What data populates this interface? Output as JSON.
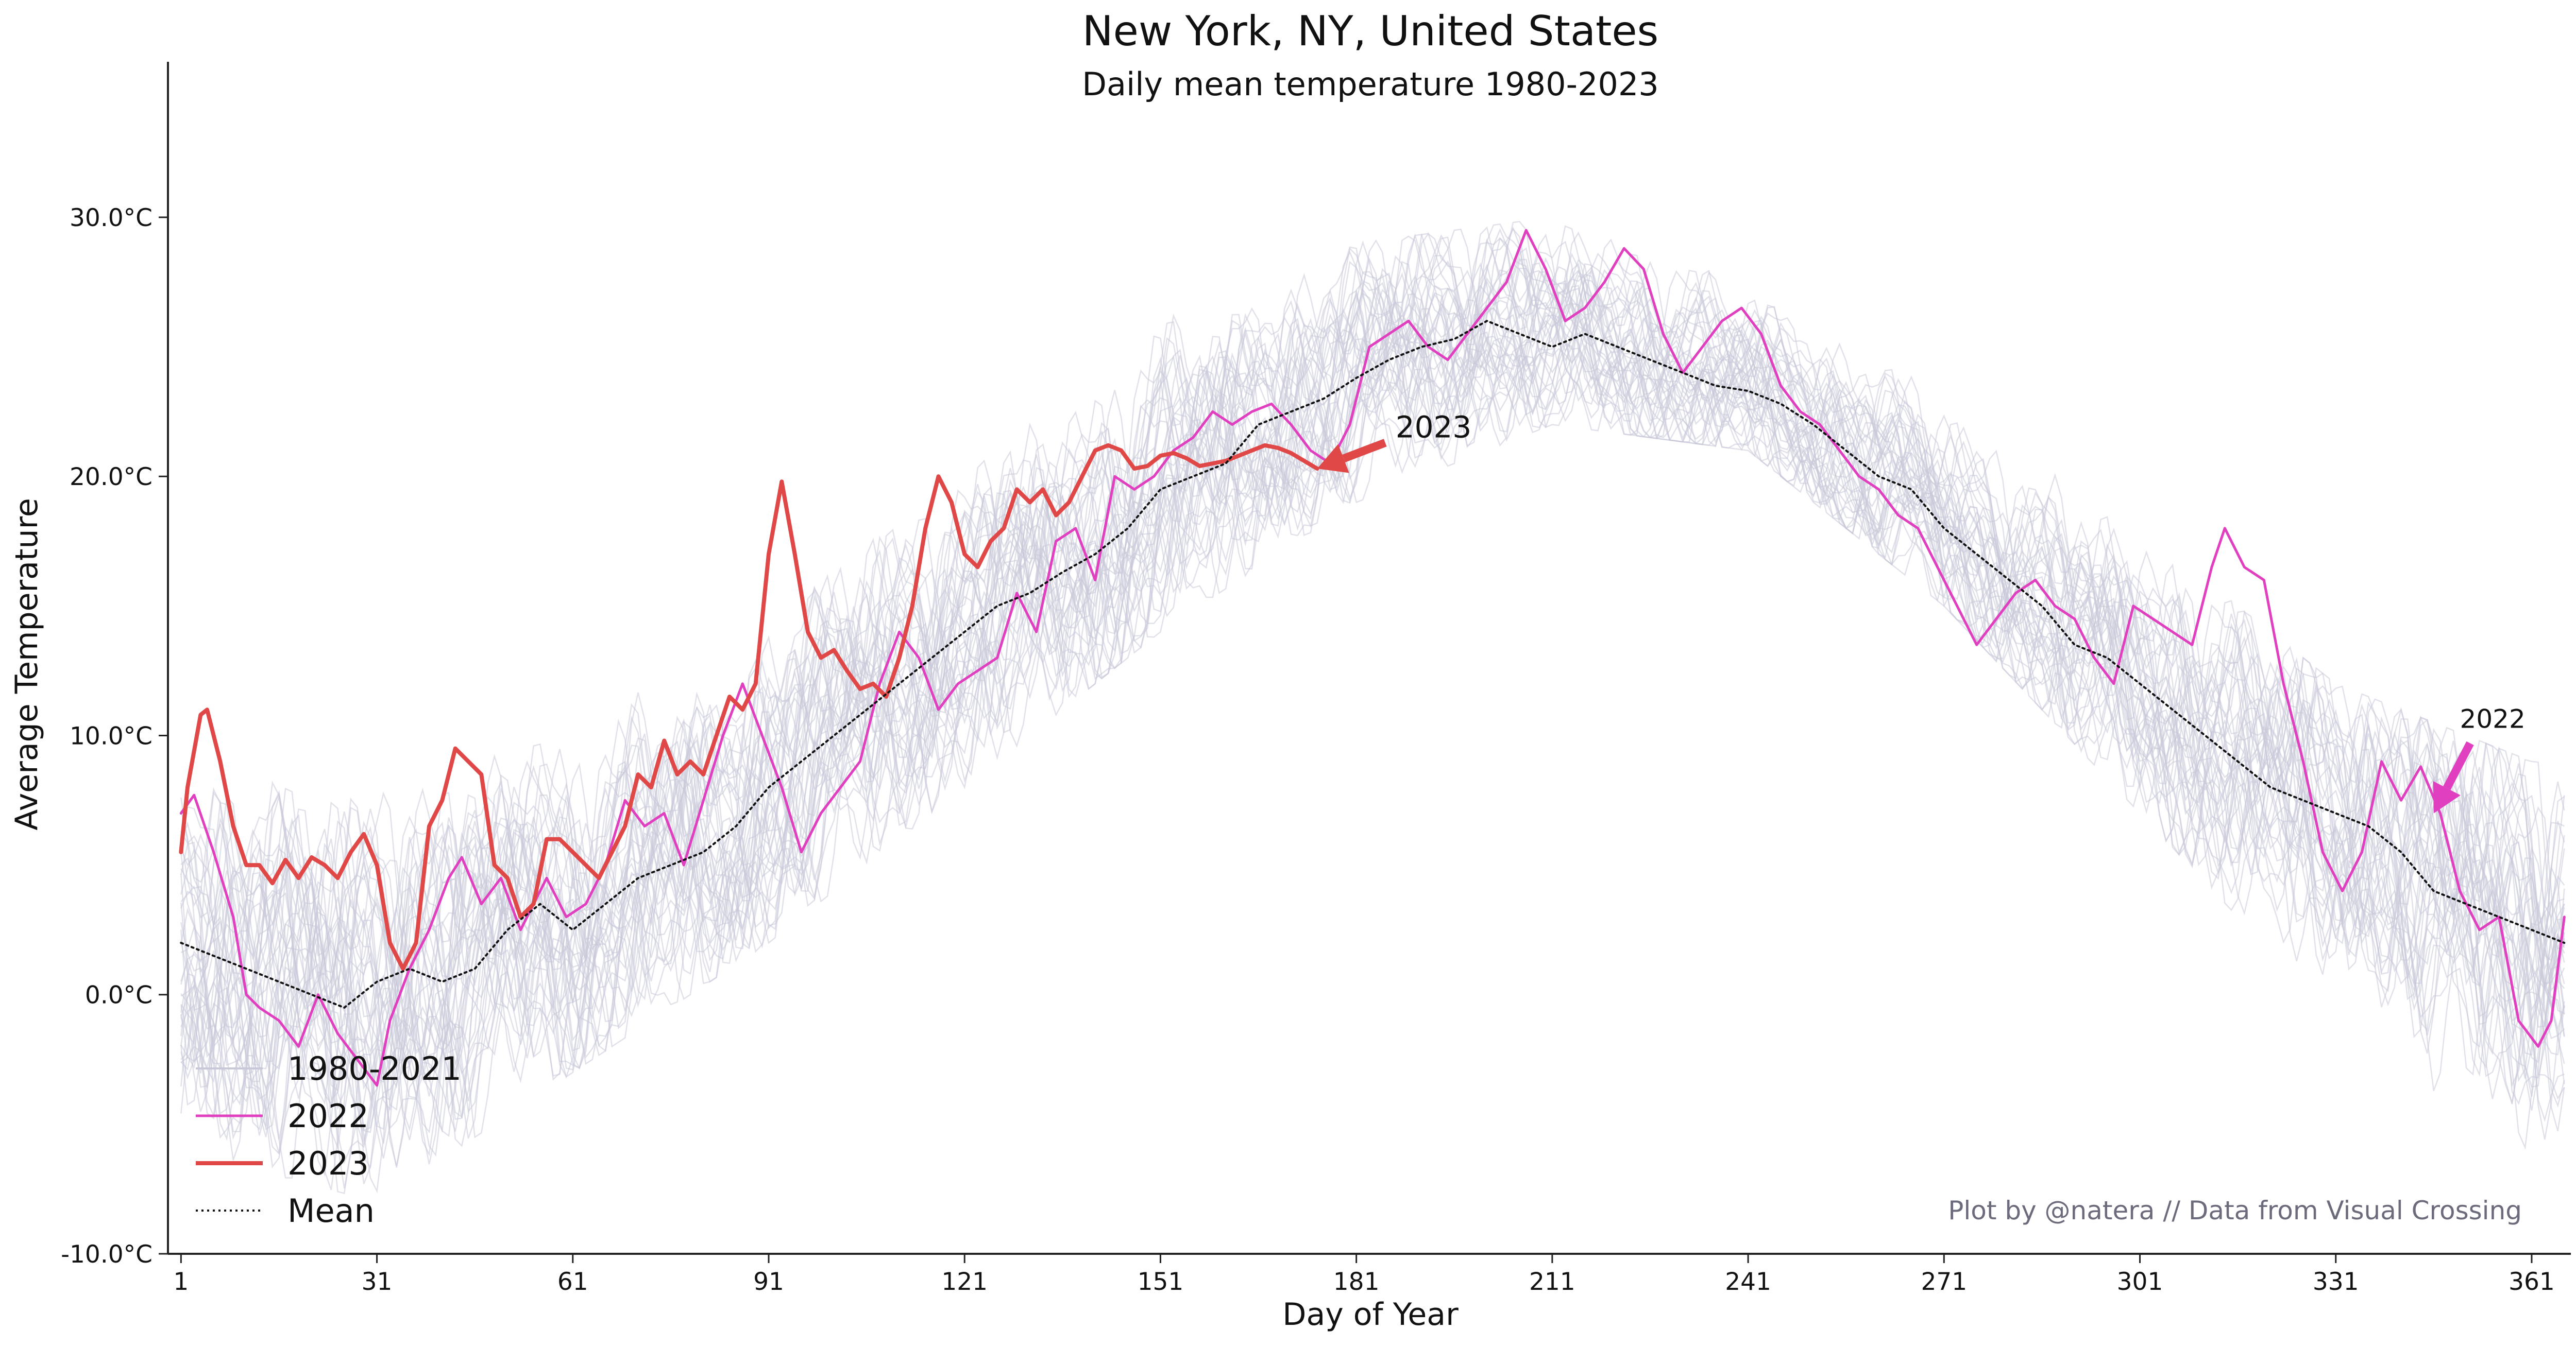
{
  "chart_data": {
    "type": "line",
    "title": "New York, NY, United States",
    "subtitle": "Daily mean temperature 1980-2023",
    "xlabel": "Day of Year",
    "ylabel": "Average Temperature",
    "xlim": [
      -1,
      367
    ],
    "ylim": [
      -10,
      36
    ],
    "xticks": [
      1,
      31,
      61,
      91,
      121,
      151,
      181,
      211,
      241,
      271,
      301,
      331,
      361
    ],
    "yticks": [
      -10,
      0,
      10,
      20,
      30
    ],
    "ytick_labels": [
      "-10.0°C",
      "0.0°C",
      "10.0°C",
      "20.0°C",
      "30.0°C"
    ],
    "grid": false,
    "legend_position": "bottom-left",
    "credit": "Plot by @natera // Data from Visual Crossing",
    "colors": {
      "history": "#c8c8d8",
      "y2022": "#e040c0",
      "y2023": "#e04848",
      "mean": "#111111"
    },
    "series": [
      {
        "name": "1980-2021",
        "style": "history",
        "note": "42 faint individual yearly traces scattered around the mean",
        "band_x": [
          1,
          31,
          61,
          91,
          121,
          151,
          181,
          211,
          241,
          271,
          301,
          331,
          361,
          366
        ],
        "band_lower": [
          -6,
          -8,
          -3,
          2,
          8,
          14,
          19,
          22,
          21,
          15,
          7,
          -1,
          -7,
          -6
        ],
        "band_upper": [
          9,
          8,
          10,
          15,
          20,
          26,
          29,
          30,
          28,
          23,
          18,
          12,
          9,
          9
        ]
      },
      {
        "name": "2022",
        "style": "y2022",
        "x": [
          1,
          3,
          6,
          9,
          11,
          13,
          16,
          19,
          22,
          25,
          28,
          31,
          33,
          36,
          39,
          42,
          44,
          47,
          50,
          53,
          57,
          60,
          63,
          66,
          69,
          72,
          75,
          78,
          81,
          84,
          87,
          90,
          93,
          96,
          99,
          102,
          105,
          108,
          111,
          114,
          117,
          120,
          123,
          126,
          129,
          132,
          135,
          138,
          141,
          144,
          147,
          150,
          153,
          156,
          159,
          162,
          165,
          168,
          171,
          174,
          177,
          180,
          183,
          186,
          189,
          192,
          195,
          198,
          201,
          204,
          207,
          210,
          213,
          216,
          219,
          222,
          225,
          228,
          231,
          234,
          237,
          240,
          243,
          246,
          249,
          252,
          255,
          258,
          261,
          264,
          267,
          270,
          273,
          276,
          279,
          282,
          285,
          288,
          291,
          294,
          297,
          300,
          303,
          306,
          309,
          312,
          314,
          317,
          320,
          323,
          326,
          329,
          332,
          335,
          338,
          341,
          344,
          347,
          350,
          353,
          356,
          359,
          362,
          364,
          366
        ],
        "values": [
          7.0,
          7.7,
          5.5,
          3.0,
          0.0,
          -0.5,
          -1.0,
          -2.0,
          0.0,
          -1.5,
          -2.5,
          -3.5,
          -1.0,
          1.0,
          2.5,
          4.5,
          5.3,
          3.5,
          4.5,
          2.5,
          4.5,
          3.0,
          3.5,
          5.0,
          7.5,
          6.5,
          7.0,
          5.0,
          7.5,
          10.0,
          12.0,
          10.0,
          8.0,
          5.5,
          7.0,
          8.0,
          9.0,
          12.0,
          14.0,
          13.0,
          11.0,
          12.0,
          12.5,
          13.0,
          15.5,
          14.0,
          17.5,
          18.0,
          16.0,
          20.0,
          19.5,
          20.0,
          21.0,
          21.5,
          22.5,
          22.0,
          22.5,
          22.8,
          22.0,
          21.0,
          20.5,
          22.0,
          25.0,
          25.5,
          26.0,
          25.0,
          24.5,
          25.5,
          26.5,
          27.5,
          29.5,
          28.0,
          26.0,
          26.5,
          27.5,
          28.8,
          28.0,
          25.5,
          24.0,
          25.0,
          26.0,
          26.5,
          25.5,
          23.5,
          22.5,
          22.0,
          21.0,
          20.0,
          19.5,
          18.5,
          18.0,
          16.5,
          15.0,
          13.5,
          14.5,
          15.5,
          16.0,
          15.0,
          14.5,
          13.0,
          12.0,
          15.0,
          14.5,
          14.0,
          13.5,
          16.5,
          18.0,
          16.5,
          16.0,
          12.0,
          9.0,
          5.5,
          4.0,
          5.5,
          9.0,
          7.5,
          8.8,
          7.0,
          4.0,
          2.5,
          3.0,
          -1.0,
          -2.0,
          -1.0,
          3.0
        ]
      },
      {
        "name": "2023",
        "style": "y2023",
        "x": [
          1,
          2,
          4,
          5,
          7,
          9,
          11,
          13,
          15,
          17,
          19,
          21,
          23,
          25,
          27,
          29,
          31,
          33,
          35,
          37,
          39,
          41,
          43,
          45,
          47,
          49,
          51,
          53,
          55,
          57,
          59,
          61,
          63,
          65,
          67,
          69,
          71,
          73,
          75,
          77,
          79,
          81,
          83,
          85,
          87,
          89,
          91,
          93,
          95,
          97,
          99,
          101,
          103,
          105,
          107,
          109,
          111,
          113,
          115,
          117,
          119,
          121,
          123,
          125,
          127,
          129,
          131,
          133,
          135,
          137,
          139,
          141,
          143,
          145,
          147,
          149,
          151,
          153,
          155,
          157,
          159,
          161,
          163,
          165,
          167,
          169,
          171,
          173,
          175
        ],
        "values": [
          5.5,
          8.0,
          10.8,
          11.0,
          9.0,
          6.5,
          5.0,
          5.0,
          4.3,
          5.2,
          4.5,
          5.3,
          5.0,
          4.5,
          5.5,
          6.2,
          5.0,
          2.0,
          1.0,
          2.0,
          6.5,
          7.5,
          9.5,
          9.0,
          8.5,
          5.0,
          4.5,
          3.0,
          3.5,
          6.0,
          6.0,
          5.5,
          5.0,
          4.5,
          5.5,
          6.5,
          8.5,
          8.0,
          9.8,
          8.5,
          9.0,
          8.5,
          10.0,
          11.5,
          11.0,
          12.0,
          17.0,
          19.8,
          17.0,
          14.0,
          13.0,
          13.3,
          12.5,
          11.8,
          12.0,
          11.5,
          13.0,
          15.0,
          18.0,
          20.0,
          19.0,
          17.0,
          16.5,
          17.5,
          18.0,
          19.5,
          19.0,
          19.5,
          18.5,
          19.0,
          20.0,
          21.0,
          21.2,
          21.0,
          20.3,
          20.4,
          20.8,
          20.9,
          20.7,
          20.4,
          20.5,
          20.6,
          20.8,
          21.0,
          21.2,
          21.1,
          20.9,
          20.6,
          20.3
        ]
      },
      {
        "name": "Mean",
        "style": "mean",
        "x": [
          1,
          6,
          11,
          16,
          21,
          26,
          31,
          36,
          41,
          46,
          51,
          56,
          61,
          66,
          71,
          76,
          81,
          86,
          91,
          96,
          101,
          106,
          111,
          116,
          121,
          126,
          131,
          136,
          141,
          146,
          151,
          156,
          161,
          166,
          171,
          176,
          181,
          186,
          191,
          196,
          201,
          206,
          211,
          216,
          221,
          226,
          231,
          236,
          241,
          246,
          251,
          256,
          261,
          266,
          271,
          276,
          281,
          286,
          291,
          296,
          301,
          306,
          311,
          316,
          321,
          326,
          331,
          336,
          341,
          346,
          351,
          356,
          361,
          366
        ],
        "values": [
          2.0,
          1.5,
          1.0,
          0.5,
          0.0,
          -0.5,
          0.5,
          1.0,
          0.5,
          1.0,
          2.5,
          3.5,
          2.5,
          3.5,
          4.5,
          5.0,
          5.5,
          6.5,
          8.0,
          9.0,
          10.0,
          11.0,
          12.0,
          13.0,
          14.0,
          15.0,
          15.5,
          16.3,
          17.0,
          18.0,
          19.5,
          20.0,
          20.5,
          22.0,
          22.5,
          23.0,
          23.8,
          24.5,
          25.0,
          25.3,
          26.0,
          25.5,
          25.0,
          25.5,
          25.0,
          24.5,
          24.0,
          23.5,
          23.3,
          22.8,
          22.0,
          21.0,
          20.0,
          19.5,
          18.0,
          17.0,
          16.0,
          15.0,
          13.5,
          13.0,
          12.0,
          11.0,
          10.0,
          9.0,
          8.0,
          7.5,
          7.0,
          6.5,
          5.5,
          4.0,
          3.5,
          3.0,
          2.5,
          2.0
        ]
      }
    ],
    "annotations": [
      {
        "text": "2023",
        "series": "2023",
        "point_x": 175,
        "point_y": 20.3,
        "text_x": 187,
        "text_y": 21.5
      },
      {
        "text": "2022",
        "series": "2022",
        "point_x": 346,
        "point_y": 7.0,
        "text_x": 350,
        "text_y": 10.3
      }
    ]
  }
}
